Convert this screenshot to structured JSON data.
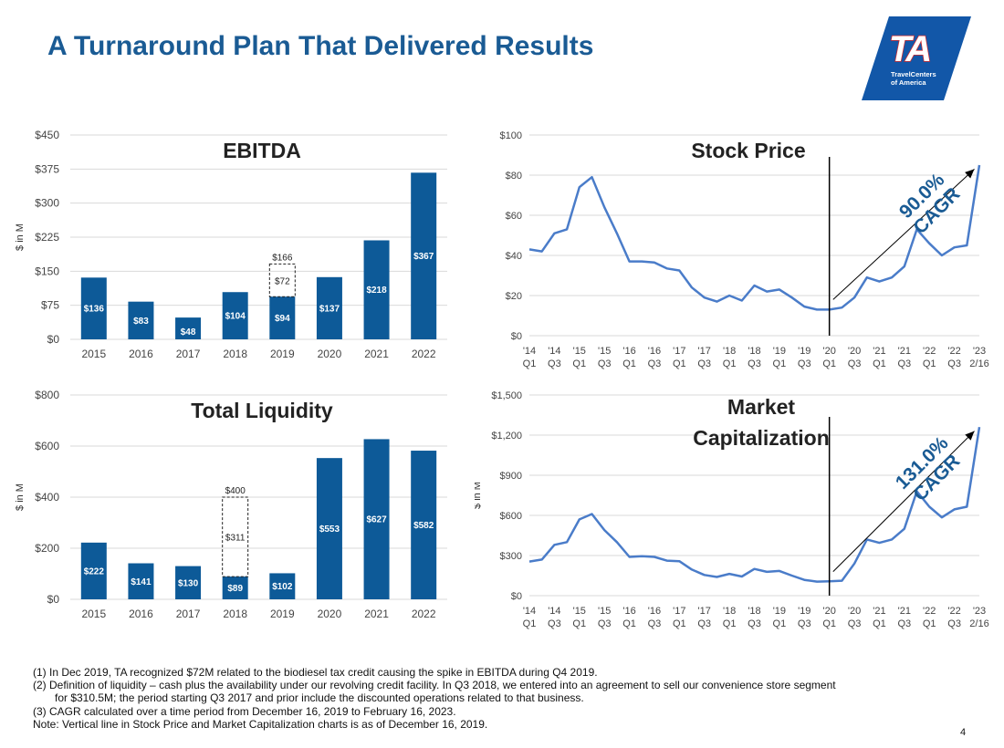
{
  "page": {
    "title": "A Turnaround Plan That Delivered Results",
    "page_number": "4"
  },
  "logo": {
    "letters": "TA",
    "tagline_line1": "TravelCenters",
    "tagline_line2": "of America",
    "color": "#1257a8"
  },
  "colors": {
    "title": "#1a5b94",
    "bar": "#0d5a98",
    "line": "#4a7cc9",
    "cagr": "#1a5b94",
    "grid": "#d9d9d9"
  },
  "chart_data": [
    {
      "id": "ebitda",
      "type": "bar",
      "title": "EBITDA",
      "ylabel": "$ in M",
      "ylim": [
        0,
        450
      ],
      "yticks": [
        0,
        75,
        150,
        225,
        300,
        375,
        450
      ],
      "ytick_labels": [
        "$0",
        "$75",
        "$150",
        "$225",
        "$300",
        "$375",
        "$450"
      ],
      "categories": [
        "2015",
        "2016",
        "2017",
        "2018",
        "2019",
        "2020",
        "2021",
        "2022"
      ],
      "values": [
        136,
        83,
        48,
        104,
        94,
        137,
        218,
        367
      ],
      "value_labels": [
        "$136",
        "$83",
        "$48",
        "$104",
        "$94",
        "$137",
        "$218",
        "$367"
      ],
      "adjustment": {
        "category": "2019",
        "value": 72,
        "label": "$72",
        "total": 166,
        "total_label": "$166"
      }
    },
    {
      "id": "liquidity",
      "type": "bar",
      "title": "Total Liquidity",
      "ylabel": "$ in M",
      "ylim": [
        0,
        800
      ],
      "yticks": [
        0,
        200,
        400,
        600,
        800
      ],
      "ytick_labels": [
        "$0",
        "$200",
        "$400",
        "$600",
        "$800"
      ],
      "categories": [
        "2015",
        "2016",
        "2017",
        "2018",
        "2019",
        "2020",
        "2021",
        "2022"
      ],
      "values": [
        222,
        141,
        130,
        89,
        102,
        553,
        627,
        582
      ],
      "value_labels": [
        "$222",
        "$141",
        "$130",
        "$89",
        "$102",
        "$553",
        "$627",
        "$582"
      ],
      "adjustment": {
        "category": "2018",
        "value": 311,
        "label": "$311",
        "total": 400,
        "total_label": "$400"
      }
    },
    {
      "id": "stock",
      "type": "line",
      "title_lines": [
        "Stock Price"
      ],
      "ylabel": "",
      "ylim": [
        0,
        100
      ],
      "yticks": [
        0,
        20,
        40,
        60,
        80,
        100
      ],
      "ytick_labels": [
        "$0",
        "$20",
        "$40",
        "$60",
        "$80",
        "$100"
      ],
      "x_ticks": [
        [
          "'14",
          "Q1"
        ],
        [
          "'14",
          "Q3"
        ],
        [
          "'15",
          "Q1"
        ],
        [
          "'15",
          "Q3"
        ],
        [
          "'16",
          "Q1"
        ],
        [
          "'16",
          "Q3"
        ],
        [
          "'17",
          "Q1"
        ],
        [
          "'17",
          "Q3"
        ],
        [
          "'18",
          "Q1"
        ],
        [
          "'18",
          "Q3"
        ],
        [
          "'19",
          "Q1"
        ],
        [
          "'19",
          "Q3"
        ],
        [
          "'20",
          "Q1"
        ],
        [
          "'20",
          "Q3"
        ],
        [
          "'21",
          "Q1"
        ],
        [
          "'21",
          "Q3"
        ],
        [
          "'22",
          "Q1"
        ],
        [
          "'22",
          "Q3"
        ],
        [
          "'23",
          "2/16"
        ]
      ],
      "x_range": [
        0,
        36
      ],
      "x": [
        0,
        1,
        2,
        3,
        4,
        5,
        6,
        7,
        8,
        9,
        10,
        11,
        12,
        13,
        14,
        15,
        16,
        17,
        18,
        19,
        20,
        21,
        22,
        23,
        24,
        25,
        26,
        27,
        28,
        29,
        30,
        31,
        32,
        33,
        34,
        35,
        36
      ],
      "values": [
        43,
        42,
        51,
        53,
        74,
        79,
        64,
        51,
        37,
        37,
        36.5,
        33.5,
        32.5,
        24,
        19,
        17,
        20,
        17.5,
        25,
        22,
        23,
        19,
        14.5,
        13,
        13,
        14,
        19,
        29,
        27,
        29,
        34.5,
        53,
        46,
        40,
        44,
        45,
        85
      ],
      "vertical_line_x": 24,
      "cagr": {
        "value": "90.0%",
        "label": "CAGR",
        "from": [
          24,
          18
        ],
        "to": [
          35.6,
          83
        ]
      }
    },
    {
      "id": "mcap",
      "type": "line",
      "title_lines": [
        "Market",
        "Capitalization"
      ],
      "ylabel": "$ in M",
      "ylim": [
        0,
        1500
      ],
      "yticks": [
        0,
        300,
        600,
        900,
        1200,
        1500
      ],
      "ytick_labels": [
        "$0",
        "$300",
        "$600",
        "$900",
        "$1,200",
        "$1,500"
      ],
      "x_ticks": [
        [
          "'14",
          "Q1"
        ],
        [
          "'14",
          "Q3"
        ],
        [
          "'15",
          "Q1"
        ],
        [
          "'15",
          "Q3"
        ],
        [
          "'16",
          "Q1"
        ],
        [
          "'16",
          "Q3"
        ],
        [
          "'17",
          "Q1"
        ],
        [
          "'17",
          "Q3"
        ],
        [
          "'18",
          "Q1"
        ],
        [
          "'18",
          "Q3"
        ],
        [
          "'19",
          "Q1"
        ],
        [
          "'19",
          "Q3"
        ],
        [
          "'20",
          "Q1"
        ],
        [
          "'20",
          "Q3"
        ],
        [
          "'21",
          "Q1"
        ],
        [
          "'21",
          "Q3"
        ],
        [
          "'22",
          "Q1"
        ],
        [
          "'22",
          "Q3"
        ],
        [
          "'23",
          "2/16"
        ]
      ],
      "x_range": [
        0,
        36
      ],
      "x": [
        0,
        1,
        2,
        3,
        4,
        5,
        6,
        7,
        8,
        9,
        10,
        11,
        12,
        13,
        14,
        15,
        16,
        17,
        18,
        19,
        20,
        21,
        22,
        23,
        24,
        25,
        26,
        27,
        28,
        29,
        30,
        31,
        32,
        33,
        34,
        35,
        36
      ],
      "values": [
        255,
        270,
        380,
        400,
        570,
        610,
        490,
        400,
        290,
        295,
        290,
        262,
        258,
        195,
        155,
        140,
        163,
        143,
        200,
        178,
        185,
        150,
        118,
        105,
        108,
        112,
        240,
        420,
        395,
        420,
        500,
        780,
        665,
        585,
        645,
        665,
        1260
      ],
      "vertical_line_x": 24,
      "cagr": {
        "value": "131.0%",
        "label": "CAGR",
        "from": [
          24,
          180
        ],
        "to": [
          35.6,
          1230
        ]
      }
    }
  ],
  "footnotes": [
    "(1)   In Dec 2019, TA recognized $72M related to the biodiesel tax credit causing the spike in EBITDA during Q4 2019.",
    "(2)   Definition of liquidity – cash plus the availability under our revolving credit facility. In Q3 2018, we entered into an agreement to sell our convenience store segment",
    "for $310.5M; the period starting Q3 2017 and prior include the discounted operations related to that business.",
    "(3)   CAGR calculated over a time period from December 16, 2019 to February 16, 2023.",
    "Note: Vertical line in Stock Price and Market Capitalization charts is as of December 16, 2019."
  ]
}
